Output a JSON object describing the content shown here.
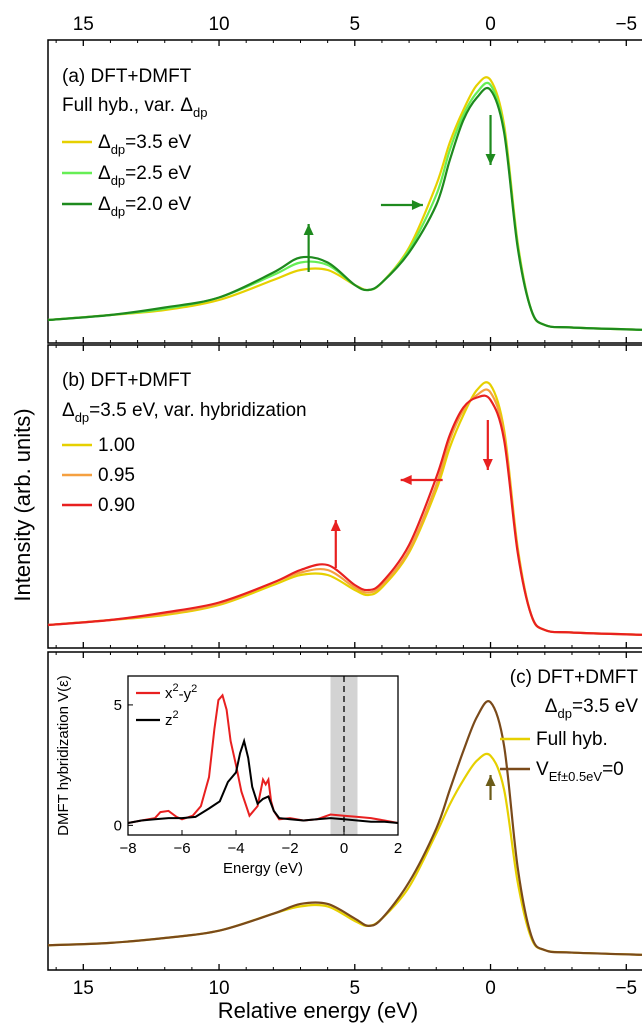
{
  "figure": {
    "xlabel": "Relative energy (eV)",
    "ylabel": "Intensity (arb. units)",
    "x_ticks": [
      15,
      10,
      5,
      0,
      -5
    ],
    "x_tick_labels": [
      "15",
      "10",
      "5",
      "0",
      "−5"
    ],
    "xlim": [
      16.3,
      -5.8
    ]
  },
  "chart_data": [
    {
      "type": "line",
      "panel": "a",
      "title": "(a) DFT+DMFT",
      "subtitle": "Full hyb., var. Δdp",
      "subtitle_main": "Full hyb., var. Δ",
      "subtitle_sub": "dp",
      "legend_location": "top-left",
      "series": [
        {
          "name": "Δdp=3.5 eV",
          "label_main": "Δ",
          "label_sub": "dp",
          "label_rest": "=3.5 eV",
          "color": "#e6d000",
          "x": [
            16.3,
            14,
            12,
            10,
            8,
            7,
            6,
            5,
            4.5,
            4,
            3,
            2,
            1.5,
            1,
            0.5,
            0,
            -0.5,
            -1,
            -1.5,
            -2,
            -3,
            -5.8
          ],
          "y": [
            0.04,
            0.06,
            0.08,
            0.12,
            0.2,
            0.24,
            0.24,
            0.18,
            0.16,
            0.19,
            0.33,
            0.58,
            0.75,
            0.88,
            0.98,
            1.0,
            0.82,
            0.35,
            0.08,
            0.02,
            0.01,
            0.0
          ]
        },
        {
          "name": "Δdp=2.5 eV",
          "label_main": "Δ",
          "label_sub": "dp",
          "label_rest": "=2.5 eV",
          "color": "#66ee55",
          "x": [
            16.3,
            14,
            12,
            10,
            8,
            7,
            6,
            5,
            4.5,
            4,
            3,
            2,
            1.5,
            1,
            0.5,
            0,
            -0.5,
            -1,
            -1.5,
            -2,
            -3,
            -5.8
          ],
          "y": [
            0.04,
            0.06,
            0.085,
            0.13,
            0.22,
            0.27,
            0.26,
            0.18,
            0.16,
            0.19,
            0.32,
            0.54,
            0.72,
            0.86,
            0.95,
            0.98,
            0.8,
            0.34,
            0.08,
            0.02,
            0.01,
            0.0
          ]
        },
        {
          "name": "Δdp=2.0 eV",
          "label_main": "Δ",
          "label_sub": "dp",
          "label_rest": "=2.0 eV",
          "color": "#1e8a1e",
          "x": [
            16.3,
            14,
            12,
            10,
            8,
            7,
            6,
            5,
            4.5,
            4,
            3,
            2,
            1.5,
            1,
            0.5,
            0,
            -0.5,
            -1,
            -1.5,
            -2,
            -3,
            -5.8
          ],
          "y": [
            0.04,
            0.06,
            0.09,
            0.13,
            0.23,
            0.29,
            0.27,
            0.18,
            0.16,
            0.19,
            0.31,
            0.5,
            0.68,
            0.84,
            0.93,
            0.96,
            0.79,
            0.33,
            0.08,
            0.02,
            0.01,
            0.0
          ]
        }
      ],
      "arrows": [
        {
          "direction": "up",
          "x": 6.7,
          "color": "#1e8a1e"
        },
        {
          "direction": "down",
          "x": 0,
          "color": "#1e8a1e"
        },
        {
          "direction": "right",
          "x": 3.3,
          "color": "#1e8a1e"
        }
      ]
    },
    {
      "type": "line",
      "panel": "b",
      "title": "(b) DFT+DMFT",
      "subtitle": "Δdp=3.5 eV, var. hybridization",
      "subtitle_main": "Δ",
      "subtitle_sub": "dp",
      "subtitle_rest": "=3.5 eV, var. hybridization",
      "legend_location": "top-left",
      "series": [
        {
          "name": "1.00",
          "color": "#e6d000",
          "x": [
            16.3,
            14,
            12,
            10,
            8,
            7,
            6,
            5,
            4.5,
            4,
            3,
            2,
            1.5,
            1,
            0.5,
            0,
            -0.5,
            -1,
            -1.5,
            -2,
            -3,
            -5.8
          ],
          "y": [
            0.04,
            0.06,
            0.08,
            0.12,
            0.2,
            0.24,
            0.24,
            0.18,
            0.16,
            0.19,
            0.33,
            0.58,
            0.75,
            0.88,
            0.98,
            1.0,
            0.82,
            0.35,
            0.08,
            0.02,
            0.01,
            0.0
          ]
        },
        {
          "name": "0.95",
          "color": "#f5a040",
          "x": [
            16.3,
            14,
            12,
            10,
            8,
            7,
            6,
            5,
            4.5,
            4,
            3,
            2,
            1.5,
            1,
            0.5,
            0,
            -0.5,
            -1,
            -1.5,
            -2,
            -3,
            -5.8
          ],
          "y": [
            0.04,
            0.06,
            0.085,
            0.125,
            0.21,
            0.25,
            0.26,
            0.19,
            0.17,
            0.2,
            0.34,
            0.6,
            0.78,
            0.9,
            0.96,
            0.97,
            0.8,
            0.34,
            0.08,
            0.02,
            0.01,
            0.0
          ]
        },
        {
          "name": "0.90",
          "color": "#e82020",
          "x": [
            16.3,
            14,
            12,
            10,
            8,
            7,
            6,
            5,
            4.5,
            4,
            3,
            2,
            1.5,
            1,
            0.5,
            0,
            -0.5,
            -1,
            -1.5,
            -2,
            -3,
            -5.8
          ],
          "y": [
            0.04,
            0.06,
            0.09,
            0.13,
            0.21,
            0.26,
            0.28,
            0.2,
            0.18,
            0.21,
            0.36,
            0.63,
            0.8,
            0.91,
            0.95,
            0.94,
            0.78,
            0.33,
            0.08,
            0.02,
            0.01,
            0.0
          ]
        }
      ],
      "arrows": [
        {
          "direction": "up",
          "x": 5.7,
          "color": "#e82020"
        },
        {
          "direction": "down",
          "x": 0.1,
          "color": "#e82020"
        },
        {
          "direction": "left",
          "x": 2.5,
          "color": "#e82020"
        }
      ]
    },
    {
      "type": "line",
      "panel": "c",
      "title": "(c) DFT+DMFT",
      "subtitle": "Δdp=3.5 eV",
      "subtitle_main": "Δ",
      "subtitle_sub": "dp",
      "subtitle_rest": "=3.5 eV",
      "legend_location": "top-right",
      "series": [
        {
          "name": "Full hyb.",
          "color": "#e6d000",
          "x": [
            16.3,
            14,
            12,
            10,
            8,
            7,
            6,
            5,
            4.5,
            4,
            3,
            2,
            1.5,
            1,
            0.5,
            0,
            -0.5,
            -1,
            -1.5,
            -2,
            -3,
            -5.8
          ],
          "y": [
            0.04,
            0.05,
            0.07,
            0.1,
            0.17,
            0.2,
            0.2,
            0.14,
            0.12,
            0.15,
            0.28,
            0.5,
            0.62,
            0.72,
            0.8,
            0.82,
            0.68,
            0.3,
            0.07,
            0.02,
            0.01,
            0.0
          ]
        },
        {
          "name": "VEf±0.5eV=0",
          "label_main": "V",
          "label_sub": "Ef±0.5eV",
          "label_rest": "=0",
          "color": "#7a4a1a",
          "x": [
            16.3,
            14,
            12,
            10,
            8,
            7,
            6,
            5,
            4.5,
            4,
            3,
            2,
            1.5,
            1,
            0.5,
            0,
            -0.5,
            -1,
            -1.5,
            -2,
            -3,
            -5.8
          ],
          "y": [
            0.04,
            0.05,
            0.07,
            0.1,
            0.17,
            0.21,
            0.21,
            0.15,
            0.12,
            0.15,
            0.3,
            0.52,
            0.68,
            0.84,
            0.98,
            1.04,
            0.86,
            0.36,
            0.08,
            0.02,
            0.01,
            0.0
          ]
        }
      ],
      "arrows": [
        {
          "direction": "up",
          "x": 0,
          "color": "#6b5b18"
        }
      ]
    },
    {
      "type": "line",
      "panel": "c-inset",
      "xlabel": "Energy (eV)",
      "ylabel": "DMFT hybridization V(ε)",
      "xlim": [
        -8,
        2
      ],
      "ylim": [
        -0.4,
        6.2
      ],
      "x_ticks": [
        -8,
        -6,
        -4,
        -2,
        0,
        2
      ],
      "x_tick_labels": [
        "−8",
        "−6",
        "−4",
        "−2",
        "0",
        "2"
      ],
      "y_ticks": [
        0,
        5
      ],
      "y_tick_labels": [
        "0",
        "5"
      ],
      "shaded_band": [
        -0.5,
        0.5
      ],
      "dashed_line_x": 0,
      "legend_location": "top-left",
      "series": [
        {
          "name": "x2-y2",
          "label_main": "x",
          "label_sup": "2",
          "label_rest": "-y",
          "label_sup2": "2",
          "color": "#e82020",
          "x": [
            -8,
            -7.5,
            -7,
            -6.8,
            -6.5,
            -6.2,
            -6,
            -5.6,
            -5.3,
            -5.0,
            -4.8,
            -4.65,
            -4.5,
            -4.35,
            -4.2,
            -4.0,
            -3.8,
            -3.5,
            -3.2,
            -3.0,
            -2.9,
            -2.8,
            -2.7,
            -2.6,
            -2.4,
            -2.0,
            -1.5,
            -1.0,
            -0.5,
            0,
            0.5,
            1.0,
            1.5,
            2
          ],
          "y": [
            0.1,
            0.2,
            0.3,
            0.55,
            0.6,
            0.35,
            0.25,
            0.4,
            0.8,
            2.0,
            4.0,
            5.2,
            5.4,
            4.8,
            3.5,
            2.5,
            1.4,
            0.4,
            0.8,
            1.9,
            1.7,
            1.9,
            1.0,
            0.6,
            0.25,
            0.3,
            0.2,
            0.25,
            0.45,
            0.4,
            0.35,
            0.3,
            0.2,
            0.1
          ]
        },
        {
          "name": "z2",
          "label_main": "z",
          "label_sup": "2",
          "color": "#000000",
          "x": [
            -8,
            -7.5,
            -7,
            -6.5,
            -6,
            -5.5,
            -5.0,
            -4.6,
            -4.3,
            -4.0,
            -3.85,
            -3.7,
            -3.55,
            -3.4,
            -3.2,
            -3.0,
            -2.8,
            -2.6,
            -2.4,
            -2.0,
            -1.5,
            -1.0,
            -0.5,
            0,
            0.5,
            1.0,
            1.5,
            2
          ],
          "y": [
            0.1,
            0.2,
            0.25,
            0.3,
            0.3,
            0.35,
            0.7,
            1.0,
            1.8,
            2.2,
            3.0,
            3.5,
            2.8,
            1.6,
            0.9,
            1.1,
            1.2,
            0.6,
            0.3,
            0.25,
            0.2,
            0.25,
            0.3,
            0.25,
            0.2,
            0.15,
            0.15,
            0.1
          ]
        }
      ]
    }
  ]
}
